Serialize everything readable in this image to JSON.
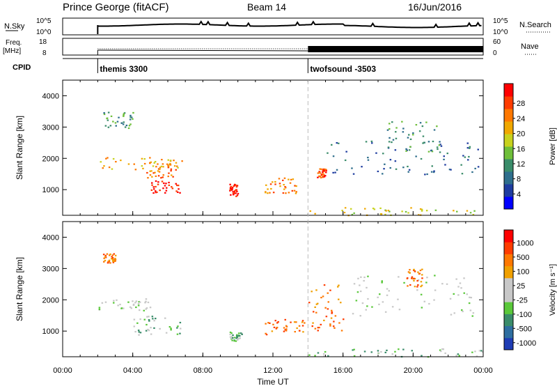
{
  "header": {
    "station": "Prince George (fitACF)",
    "beam": "Beam 14",
    "date": "16/Jun/2016"
  },
  "params": {
    "nsky_label": "N.Sky",
    "nsky_ticks": [
      "10^5",
      "10^0"
    ],
    "nsearch_label": "N.Search",
    "freq_label_1": "Freq.",
    "freq_label_2": "[MHz]",
    "freq_ticks": [
      "18",
      "8"
    ],
    "nave_ticks": [
      "60",
      "0"
    ],
    "nave_label": "Nave",
    "cpid_label": "CPID",
    "cpid_segments": [
      {
        "name": "themis 3300",
        "start_hour": 2.0,
        "end_hour": 14.0
      },
      {
        "name": "twofsound -3503",
        "start_hour": 14.0,
        "end_hour": 24.0
      }
    ]
  },
  "colors": {
    "power_scale": [
      "#0000ff",
      "#1e3ca0",
      "#2e6e8c",
      "#3a8c6a",
      "#6fbf3a",
      "#c8d21e",
      "#f0a800",
      "#ff7800",
      "#ff3c00",
      "#ff0000"
    ],
    "velocity_scale": [
      "#1e3cb4",
      "#2e6ea0",
      "#3a8c6a",
      "#5ac83a",
      "#c8c8c8",
      "#c8c8c8",
      "#f0a000",
      "#ff7800",
      "#ff3c00",
      "#ff0000"
    ],
    "gray": "#c8c8c8"
  },
  "chart_data": [
    {
      "type": "heatmap",
      "panel": "power",
      "ylabel": "Slant Range [km]",
      "xlabel": "Time UT",
      "x_range_hours": [
        0,
        24
      ],
      "ylim": [
        180,
        4500
      ],
      "x_ticks": [
        "00:00",
        "04:00",
        "08:00",
        "12:00",
        "16:00",
        "20:00",
        "00:00"
      ],
      "y_ticks": [
        "1000",
        "2000",
        "3000",
        "4000"
      ],
      "colorbar_label": "Power [dB]",
      "colorbar_ticks": [
        "4",
        "8",
        "12",
        "16",
        "20",
        "24",
        "28"
      ],
      "regions": [
        {
          "t": [
            2.0,
            7.0
          ],
          "r": [
            1650,
            2050
          ],
          "level": 6
        },
        {
          "t": [
            5.0,
            6.8
          ],
          "r": [
            900,
            1300
          ],
          "level": 9
        },
        {
          "t": [
            4.5,
            6.5
          ],
          "r": [
            1400,
            1900
          ],
          "level": 7
        },
        {
          "t": [
            2.3,
            4.0
          ],
          "r": [
            2900,
            3500
          ],
          "level": 3
        },
        {
          "t": [
            9.5,
            10.0
          ],
          "r": [
            800,
            1200
          ],
          "level": 9
        },
        {
          "t": [
            11.5,
            13.5
          ],
          "r": [
            900,
            1400
          ],
          "level": 7
        },
        {
          "t": [
            14.5,
            15.0
          ],
          "r": [
            1400,
            1700
          ],
          "level": 8
        },
        {
          "t": [
            14.0,
            24.0
          ],
          "r": [
            200,
            450
          ],
          "level": 5
        },
        {
          "t": [
            15.0,
            24.0
          ],
          "r": [
            1500,
            2600
          ],
          "level": 2
        },
        {
          "t": [
            18.5,
            21.5
          ],
          "r": [
            2200,
            3200
          ],
          "level": 3
        }
      ]
    },
    {
      "type": "heatmap",
      "panel": "velocity",
      "ylabel": "Slant Range [km]",
      "xlabel": "Time UT",
      "x_range_hours": [
        0,
        24
      ],
      "ylim": [
        180,
        4500
      ],
      "x_ticks": [
        "00:00",
        "04:00",
        "08:00",
        "12:00",
        "16:00",
        "20:00",
        "00:00"
      ],
      "y_ticks": [
        "1000",
        "2000",
        "3000",
        "4000"
      ],
      "colorbar_label": "Velocity [m s⁻¹]",
      "colorbar_ticks": [
        "1000",
        "500",
        "100",
        "25",
        "-25",
        "-100",
        "-500",
        "-1000"
      ],
      "regions": [
        {
          "t": [
            2.0,
            5.0
          ],
          "r": [
            1650,
            2050
          ],
          "level": 4
        },
        {
          "t": [
            4.0,
            6.8
          ],
          "r": [
            900,
            1500
          ],
          "level": 3
        },
        {
          "t": [
            2.3,
            3.0
          ],
          "r": [
            3200,
            3500
          ],
          "level": 7
        },
        {
          "t": [
            9.5,
            10.2
          ],
          "r": [
            700,
            1000
          ],
          "level": 3
        },
        {
          "t": [
            11.5,
            13.8
          ],
          "r": [
            900,
            1400
          ],
          "level": 7
        },
        {
          "t": [
            14.0,
            16.0
          ],
          "r": [
            1000,
            2500
          ],
          "level": 7
        },
        {
          "t": [
            14.0,
            24.0
          ],
          "r": [
            200,
            450
          ],
          "level": 3
        },
        {
          "t": [
            16.5,
            23.5
          ],
          "r": [
            1500,
            2800
          ],
          "level": 4
        },
        {
          "t": [
            19.5,
            20.5
          ],
          "r": [
            2400,
            3000
          ],
          "level": 7
        }
      ]
    }
  ]
}
